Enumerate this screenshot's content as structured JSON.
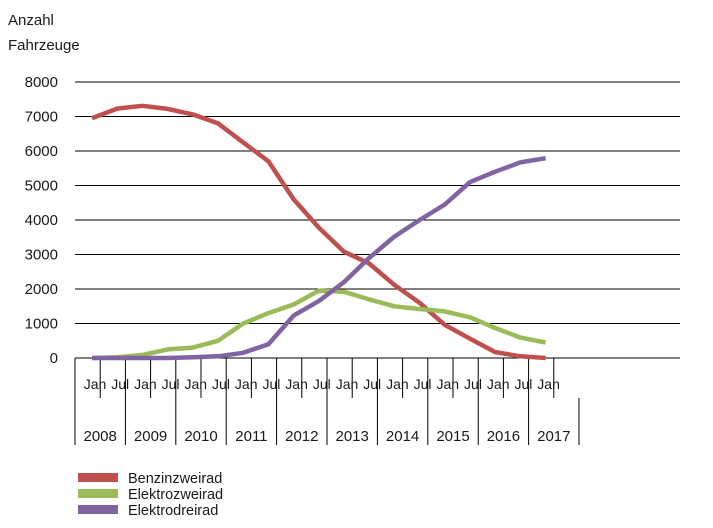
{
  "chart_data": {
    "type": "line",
    "ylabel_lines": [
      "Anzahl",
      "Fahrzeuge"
    ],
    "ylim": [
      0,
      8000
    ],
    "yticks": [
      "0",
      "1000",
      "2000",
      "3000",
      "4000",
      "5000",
      "6000",
      "7000",
      "8000"
    ],
    "grid": true,
    "legend_position": "bottom-left",
    "x": [
      "Jan 2008",
      "Jul 2008",
      "Jan 2009",
      "Jul 2009",
      "Jan 2010",
      "Jul 2010",
      "Jan 2011",
      "Jul 2011",
      "Jan 2012",
      "Jul 2012",
      "Jan 2013",
      "Jul 2013",
      "Jan 2014",
      "Jul 2014",
      "Jan 2015",
      "Jul 2015",
      "Jan 2016",
      "Jul 2016",
      "Jan 2017"
    ],
    "month_labels": [
      "Jan",
      "Jul",
      "Jan",
      "Jul",
      "Jan",
      "Jul",
      "Jan",
      "Jul",
      "Jan",
      "Jul",
      "Jan",
      "Jul",
      "Jan",
      "Jul",
      "Jan",
      "Jul",
      "Jan",
      "Jul",
      "Jan"
    ],
    "year_labels": [
      "2008",
      "2009",
      "2010",
      "2011",
      "2012",
      "2013",
      "2014",
      "2015",
      "2016",
      "2017"
    ],
    "series": [
      {
        "name": "Benzinzweirad",
        "color": "#c0504d",
        "values": [
          6950,
          7230,
          7310,
          7220,
          7060,
          6800,
          6250,
          5700,
          4600,
          3780,
          3080,
          2740,
          2120,
          1600,
          960,
          560,
          170,
          50,
          0
        ]
      },
      {
        "name": "Elektrozweirad",
        "color": "#9bbb59",
        "values": [
          0,
          20,
          90,
          250,
          300,
          500,
          1000,
          1300,
          1550,
          1950,
          1920,
          1700,
          1500,
          1420,
          1350,
          1180,
          870,
          590,
          450
        ]
      },
      {
        "name": "Elektrodreirad",
        "color": "#8064a2",
        "values": [
          0,
          0,
          0,
          0,
          20,
          50,
          150,
          400,
          1230,
          1650,
          2200,
          2900,
          3520,
          4000,
          4450,
          5100,
          5400,
          5670,
          5790
        ]
      }
    ]
  }
}
